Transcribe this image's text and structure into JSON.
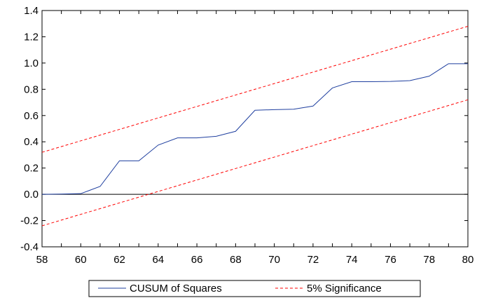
{
  "chart_data": {
    "type": "line",
    "x": [
      58,
      59,
      60,
      61,
      62,
      63,
      64,
      65,
      66,
      67,
      68,
      69,
      70,
      71,
      72,
      73,
      74,
      75,
      76,
      77,
      78,
      79,
      80
    ],
    "series": [
      {
        "name": "CUSUM of Squares",
        "color": "#1f3f9f",
        "style": "solid",
        "values": [
          0.0,
          0.002,
          0.005,
          0.06,
          0.255,
          0.255,
          0.375,
          0.43,
          0.43,
          0.442,
          0.48,
          0.64,
          0.645,
          0.648,
          0.672,
          0.81,
          0.858,
          0.858,
          0.86,
          0.866,
          0.9,
          0.995,
          0.995
        ]
      },
      {
        "name": "5% Significance",
        "color": "#ff0000",
        "style": "dashed",
        "upper": [
          0.32,
          1.28
        ],
        "lower": [
          -0.24,
          0.72
        ]
      }
    ],
    "xlim": [
      58,
      80
    ],
    "ylim": [
      -0.4,
      1.4
    ],
    "x_ticks": [
      "58",
      "60",
      "62",
      "64",
      "66",
      "68",
      "70",
      "72",
      "74",
      "76",
      "78",
      "80"
    ],
    "y_ticks": [
      "-0.4",
      "-0.2",
      "0.0",
      "0.2",
      "0.4",
      "0.6",
      "0.8",
      "1.0",
      "1.2",
      "1.4"
    ],
    "zero_line": true,
    "grid": false,
    "legend_position": "bottom-center"
  }
}
